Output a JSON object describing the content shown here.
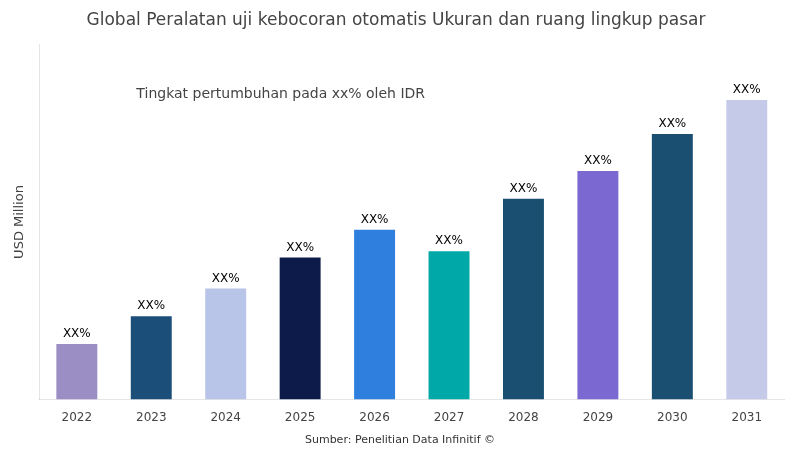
{
  "chart_data": {
    "type": "bar",
    "title": "Global Peralatan uji kebocoran otomatis Ukuran dan ruang lingkup pasar",
    "ylabel": "USD Million",
    "annotations": [
      "Tingkat pertumbuhan pada xx% oleh IDR",
      "Sumber: Penelitian Data Infinitif ©"
    ],
    "categories": [
      "2022",
      "2023",
      "2024",
      "2025",
      "2026",
      "2027",
      "2028",
      "2029",
      "2030",
      "2031"
    ],
    "values": [
      18,
      27,
      36,
      46,
      55,
      48,
      65,
      74,
      86,
      97
    ],
    "value_labels": [
      "XX%",
      "XX%",
      "XX%",
      "XX%",
      "XX%",
      "XX%",
      "XX%",
      "XX%",
      "XX%",
      "XX%"
    ],
    "colors": [
      "#9B8EC4",
      "#1C4E7A",
      "#B8C4E8",
      "#0D1B4B",
      "#2E7FDE",
      "#00A8A8",
      "#1A4F72",
      "#7B68D0",
      "#1B4F72",
      "#C5CAE9"
    ],
    "data_labels": true,
    "ylim": [
      0,
      115
    ],
    "yticks": [],
    "grid": false,
    "tick_labels": "x"
  }
}
